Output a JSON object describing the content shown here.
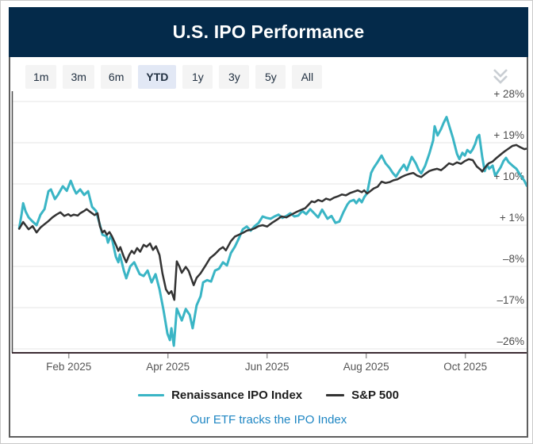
{
  "header": {
    "title": "U.S. IPO Performance"
  },
  "toolbar": {
    "buttons": [
      {
        "label": "1m",
        "active": false
      },
      {
        "label": "3m",
        "active": false
      },
      {
        "label": "6m",
        "active": false
      },
      {
        "label": "YTD",
        "active": true
      },
      {
        "label": "1y",
        "active": false
      },
      {
        "label": "3y",
        "active": false
      },
      {
        "label": "5y",
        "active": false
      },
      {
        "label": "All",
        "active": false
      }
    ],
    "collapse_icon": "double-chevron-down"
  },
  "footer": {
    "link_text": "Our ETF tracks the IPO Index"
  },
  "colors": {
    "header_bg": "#042a4a",
    "ipo_line": "#3ab5c5",
    "sp500_line": "#333333",
    "link": "#1e86c3",
    "button_bg": "#f4f4f4",
    "active_button_bg": "#e2e8f5",
    "grid": "#e4e4e4",
    "axis": "#4a4a4a",
    "baseline": "#3c2b33"
  },
  "chart_data": {
    "type": "line",
    "title": "U.S. IPO Performance",
    "x_unit": "months_since_2025-01-01",
    "xlim": [
      0,
      10.35
    ],
    "ylim_pct": [
      -29,
      30
    ],
    "grid": true,
    "legend_position": "bottom",
    "y_axis": {
      "side": "right",
      "gridlines": [
        {
          "pct": 28,
          "label": "+ 28%"
        },
        {
          "pct": 19,
          "label": "+ 19%"
        },
        {
          "pct": 10,
          "label": "+ 10%"
        },
        {
          "pct": 1,
          "label": "+ 1%"
        },
        {
          "pct": -8,
          "label": "–8%"
        },
        {
          "pct": -17,
          "label": "–17%"
        },
        {
          "pct": -26,
          "label": "–26%"
        }
      ]
    },
    "x_axis": {
      "ticks": [
        {
          "m": 1,
          "label": "Feb 2025"
        },
        {
          "m": 3,
          "label": "Apr 2025"
        },
        {
          "m": 5,
          "label": "Jun 2025"
        },
        {
          "m": 7,
          "label": "Aug 2025"
        },
        {
          "m": 9,
          "label": "Oct 2025"
        }
      ]
    },
    "series": [
      {
        "name": "Renaissance IPO Index",
        "key": "ipo-index",
        "color": "#3ab5c5",
        "stroke_width": 3,
        "points": [
          [
            0.0,
            0.3
          ],
          [
            0.05,
            3.5
          ],
          [
            0.08,
            5.8
          ],
          [
            0.13,
            4.0
          ],
          [
            0.19,
            2.7
          ],
          [
            0.27,
            1.8
          ],
          [
            0.35,
            1.0
          ],
          [
            0.43,
            3.3
          ],
          [
            0.51,
            4.5
          ],
          [
            0.59,
            8.4
          ],
          [
            0.64,
            8.8
          ],
          [
            0.72,
            6.7
          ],
          [
            0.78,
            7.6
          ],
          [
            0.88,
            9.5
          ],
          [
            0.96,
            8.5
          ],
          [
            1.04,
            10.7
          ],
          [
            1.1,
            9.0
          ],
          [
            1.15,
            7.9
          ],
          [
            1.23,
            8.8
          ],
          [
            1.31,
            7.6
          ],
          [
            1.39,
            8.4
          ],
          [
            1.47,
            5.0
          ],
          [
            1.55,
            4.1
          ],
          [
            1.63,
            1.0
          ],
          [
            1.68,
            -1.1
          ],
          [
            1.76,
            -1.4
          ],
          [
            1.79,
            -2.8
          ],
          [
            1.84,
            -1.5
          ],
          [
            1.87,
            -1.9
          ],
          [
            1.95,
            -5.9
          ],
          [
            2.0,
            -7.1
          ],
          [
            2.03,
            -5.4
          ],
          [
            2.11,
            -8.9
          ],
          [
            2.16,
            -10.6
          ],
          [
            2.24,
            -8.0
          ],
          [
            2.32,
            -7.1
          ],
          [
            2.38,
            -8.5
          ],
          [
            2.43,
            -9.7
          ],
          [
            2.51,
            -10.1
          ],
          [
            2.59,
            -8.9
          ],
          [
            2.67,
            -11.5
          ],
          [
            2.75,
            -9.7
          ],
          [
            2.83,
            -13.0
          ],
          [
            2.91,
            -17.5
          ],
          [
            2.99,
            -22.7
          ],
          [
            3.04,
            -24.1
          ],
          [
            3.07,
            -21.5
          ],
          [
            3.12,
            -25.3
          ],
          [
            3.18,
            -17.2
          ],
          [
            3.28,
            -19.8
          ],
          [
            3.36,
            -17.3
          ],
          [
            3.44,
            -18.6
          ],
          [
            3.5,
            -21.5
          ],
          [
            3.58,
            -16.5
          ],
          [
            3.66,
            -14.5
          ],
          [
            3.71,
            -11.5
          ],
          [
            3.79,
            -11.0
          ],
          [
            3.87,
            -11.3
          ],
          [
            3.95,
            -8.9
          ],
          [
            4.03,
            -8.5
          ],
          [
            4.11,
            -7.1
          ],
          [
            4.19,
            -7.8
          ],
          [
            4.27,
            -5.1
          ],
          [
            4.35,
            -3.7
          ],
          [
            4.43,
            -1.9
          ],
          [
            4.51,
            0.1
          ],
          [
            4.59,
            0.7
          ],
          [
            4.67,
            -0.2
          ],
          [
            4.75,
            0.8
          ],
          [
            4.83,
            1.5
          ],
          [
            4.91,
            2.9
          ],
          [
            4.99,
            2.6
          ],
          [
            5.07,
            2.4
          ],
          [
            5.15,
            2.9
          ],
          [
            5.23,
            3.3
          ],
          [
            5.31,
            2.6
          ],
          [
            5.39,
            3.0
          ],
          [
            5.47,
            3.6
          ],
          [
            5.55,
            2.9
          ],
          [
            5.63,
            3.1
          ],
          [
            5.71,
            4.1
          ],
          [
            5.79,
            3.4
          ],
          [
            5.87,
            4.5
          ],
          [
            5.95,
            3.6
          ],
          [
            6.03,
            2.7
          ],
          [
            6.11,
            4.4
          ],
          [
            6.22,
            2.4
          ],
          [
            6.3,
            3.0
          ],
          [
            6.38,
            1.5
          ],
          [
            6.46,
            1.8
          ],
          [
            6.54,
            3.8
          ],
          [
            6.62,
            5.5
          ],
          [
            6.67,
            6.2
          ],
          [
            6.75,
            6.5
          ],
          [
            6.8,
            5.8
          ],
          [
            6.86,
            6.7
          ],
          [
            6.91,
            6.0
          ],
          [
            6.96,
            7.1
          ],
          [
            7.02,
            8.0
          ],
          [
            7.1,
            12.4
          ],
          [
            7.15,
            13.5
          ],
          [
            7.23,
            14.8
          ],
          [
            7.31,
            16.2
          ],
          [
            7.39,
            14.5
          ],
          [
            7.47,
            13.5
          ],
          [
            7.53,
            12.5
          ],
          [
            7.6,
            11.6
          ],
          [
            7.68,
            13.0
          ],
          [
            7.76,
            14.2
          ],
          [
            7.82,
            13.0
          ],
          [
            7.92,
            15.9
          ],
          [
            8.0,
            14.5
          ],
          [
            8.06,
            13.0
          ],
          [
            8.11,
            12.3
          ],
          [
            8.19,
            14.0
          ],
          [
            8.27,
            16.5
          ],
          [
            8.35,
            19.5
          ],
          [
            8.38,
            22.6
          ],
          [
            8.44,
            20.6
          ],
          [
            8.51,
            22.0
          ],
          [
            8.56,
            23.3
          ],
          [
            8.62,
            24.6
          ],
          [
            8.68,
            22.5
          ],
          [
            8.75,
            20.0
          ],
          [
            8.83,
            16.6
          ],
          [
            8.88,
            15.4
          ],
          [
            8.94,
            16.8
          ],
          [
            8.99,
            16.2
          ],
          [
            9.04,
            17.4
          ],
          [
            9.1,
            16.8
          ],
          [
            9.15,
            17.6
          ],
          [
            9.2,
            18.8
          ],
          [
            9.24,
            20.2
          ],
          [
            9.28,
            20.7
          ],
          [
            9.34,
            15.9
          ],
          [
            9.39,
            12.8
          ],
          [
            9.44,
            14.2
          ],
          [
            9.48,
            13.3
          ],
          [
            9.55,
            14.0
          ],
          [
            9.6,
            11.9
          ],
          [
            9.64,
            12.4
          ],
          [
            9.71,
            13.6
          ],
          [
            9.77,
            15.0
          ],
          [
            9.82,
            15.7
          ],
          [
            9.87,
            14.8
          ],
          [
            9.95,
            14.0
          ],
          [
            10.03,
            13.3
          ],
          [
            10.11,
            11.9
          ],
          [
            10.19,
            10.7
          ],
          [
            10.24,
            9.6
          ],
          [
            10.28,
            10.4
          ]
        ]
      },
      {
        "name": "S&P 500",
        "key": "sp500",
        "color": "#333333",
        "stroke_width": 2.5,
        "points": [
          [
            0.0,
            0.2
          ],
          [
            0.08,
            1.7
          ],
          [
            0.19,
            0.1
          ],
          [
            0.27,
            0.8
          ],
          [
            0.35,
            -0.6
          ],
          [
            0.43,
            0.5
          ],
          [
            0.51,
            1.2
          ],
          [
            0.59,
            1.9
          ],
          [
            0.67,
            2.7
          ],
          [
            0.75,
            3.3
          ],
          [
            0.83,
            3.8
          ],
          [
            0.91,
            3.0
          ],
          [
            0.99,
            3.4
          ],
          [
            1.04,
            3.0
          ],
          [
            1.1,
            3.3
          ],
          [
            1.18,
            3.1
          ],
          [
            1.23,
            3.6
          ],
          [
            1.31,
            4.1
          ],
          [
            1.36,
            4.5
          ],
          [
            1.42,
            4.0
          ],
          [
            1.52,
            3.2
          ],
          [
            1.58,
            3.6
          ],
          [
            1.63,
            0.7
          ],
          [
            1.68,
            -0.6
          ],
          [
            1.72,
            -0.2
          ],
          [
            1.77,
            -1.1
          ],
          [
            1.82,
            -0.5
          ],
          [
            1.87,
            -1.4
          ],
          [
            1.95,
            -3.3
          ],
          [
            2.0,
            -4.6
          ],
          [
            2.04,
            -3.8
          ],
          [
            2.11,
            -5.9
          ],
          [
            2.16,
            -7.1
          ],
          [
            2.22,
            -5.5
          ],
          [
            2.27,
            -4.6
          ],
          [
            2.32,
            -5.2
          ],
          [
            2.38,
            -4.0
          ],
          [
            2.44,
            -4.8
          ],
          [
            2.51,
            -3.3
          ],
          [
            2.57,
            -3.7
          ],
          [
            2.64,
            -3.0
          ],
          [
            2.7,
            -4.4
          ],
          [
            2.76,
            -3.6
          ],
          [
            2.83,
            -5.5
          ],
          [
            2.89,
            -9.5
          ],
          [
            2.96,
            -13.0
          ],
          [
            3.02,
            -14.0
          ],
          [
            3.07,
            -13.4
          ],
          [
            3.13,
            -15.3
          ],
          [
            3.18,
            -6.9
          ],
          [
            3.23,
            -8.0
          ],
          [
            3.28,
            -9.4
          ],
          [
            3.36,
            -8.1
          ],
          [
            3.42,
            -9.0
          ],
          [
            3.52,
            -12.1
          ],
          [
            3.58,
            -10.5
          ],
          [
            3.66,
            -9.5
          ],
          [
            3.76,
            -7.8
          ],
          [
            3.85,
            -6.2
          ],
          [
            3.95,
            -5.3
          ],
          [
            4.04,
            -4.3
          ],
          [
            4.11,
            -3.8
          ],
          [
            4.17,
            -4.5
          ],
          [
            4.27,
            -2.5
          ],
          [
            4.35,
            -1.5
          ],
          [
            4.43,
            -1.1
          ],
          [
            4.51,
            -0.7
          ],
          [
            4.59,
            -0.2
          ],
          [
            4.67,
            0.0
          ],
          [
            4.75,
            0.3
          ],
          [
            4.83,
            0.8
          ],
          [
            4.91,
            1.0
          ],
          [
            5.0,
            0.7
          ],
          [
            5.1,
            1.5
          ],
          [
            5.2,
            2.2
          ],
          [
            5.29,
            2.9
          ],
          [
            5.39,
            2.7
          ],
          [
            5.49,
            3.3
          ],
          [
            5.58,
            3.8
          ],
          [
            5.68,
            4.3
          ],
          [
            5.77,
            4.7
          ],
          [
            5.84,
            5.5
          ],
          [
            5.9,
            6.2
          ],
          [
            5.96,
            6.0
          ],
          [
            6.03,
            6.5
          ],
          [
            6.11,
            6.2
          ],
          [
            6.19,
            6.8
          ],
          [
            6.27,
            6.5
          ],
          [
            6.35,
            7.0
          ],
          [
            6.43,
            7.3
          ],
          [
            6.51,
            7.7
          ],
          [
            6.59,
            7.5
          ],
          [
            6.67,
            8.0
          ],
          [
            6.75,
            8.3
          ],
          [
            6.83,
            8.6
          ],
          [
            6.91,
            8.2
          ],
          [
            6.96,
            8.6
          ],
          [
            7.02,
            7.9
          ],
          [
            7.08,
            8.4
          ],
          [
            7.15,
            9.0
          ],
          [
            7.23,
            9.4
          ],
          [
            7.31,
            10.5
          ],
          [
            7.39,
            10.2
          ],
          [
            7.47,
            10.4
          ],
          [
            7.55,
            10.8
          ],
          [
            7.63,
            11.0
          ],
          [
            7.71,
            11.5
          ],
          [
            7.79,
            11.9
          ],
          [
            7.87,
            12.2
          ],
          [
            7.95,
            12.4
          ],
          [
            8.03,
            11.8
          ],
          [
            8.11,
            11.5
          ],
          [
            8.19,
            12.2
          ],
          [
            8.27,
            12.8
          ],
          [
            8.35,
            13.1
          ],
          [
            8.43,
            13.3
          ],
          [
            8.51,
            13.0
          ],
          [
            8.59,
            13.7
          ],
          [
            8.67,
            14.5
          ],
          [
            8.75,
            14.2
          ],
          [
            8.83,
            14.7
          ],
          [
            8.91,
            14.4
          ],
          [
            8.99,
            15.0
          ],
          [
            9.07,
            15.4
          ],
          [
            9.15,
            15.2
          ],
          [
            9.23,
            13.8
          ],
          [
            9.31,
            13.1
          ],
          [
            9.34,
            12.7
          ],
          [
            9.39,
            13.5
          ],
          [
            9.47,
            14.5
          ],
          [
            9.55,
            14.9
          ],
          [
            9.63,
            15.7
          ],
          [
            9.71,
            16.4
          ],
          [
            9.79,
            17.1
          ],
          [
            9.87,
            17.7
          ],
          [
            9.95,
            18.3
          ],
          [
            10.03,
            18.5
          ],
          [
            10.11,
            18.0
          ],
          [
            10.19,
            17.6
          ],
          [
            10.28,
            17.8
          ]
        ]
      }
    ]
  }
}
